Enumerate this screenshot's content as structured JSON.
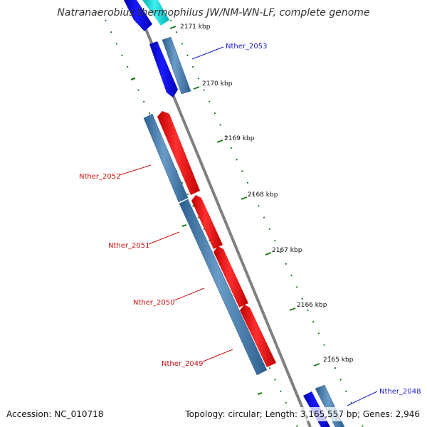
{
  "title": "Natranaerobius thermophilus JW/NM-WN-LF, complete genome",
  "footer": {
    "accession": "Accession: NC_010718",
    "summary": "Topology: circular; Length: 3,165,557 bp; Genes: 2,946"
  },
  "colors": {
    "backbone": "#808080",
    "tick": "#1e7a1e",
    "forward_cds": "#0000ee",
    "forward_cds_alt": "#00dddd",
    "gene": "#4f7fae",
    "reverse_cds": "#ff0000",
    "label_forward": "#1a1acc",
    "label_reverse": "#cc1111"
  },
  "ticks": [
    "2171 kbp",
    "2170 kbp",
    "2169 kbp",
    "2168 kbp",
    "2167 kbp",
    "2166 kbp",
    "2165 kbp"
  ],
  "genes": [
    {
      "name": "Nther_2053",
      "strand": "forward"
    },
    {
      "name": "Nther_2052",
      "strand": "reverse"
    },
    {
      "name": "Nther_2051",
      "strand": "reverse"
    },
    {
      "name": "Nther_2050",
      "strand": "reverse"
    },
    {
      "name": "Nther_2049",
      "strand": "reverse"
    },
    {
      "name": "Nther_2048",
      "strand": "forward"
    }
  ]
}
